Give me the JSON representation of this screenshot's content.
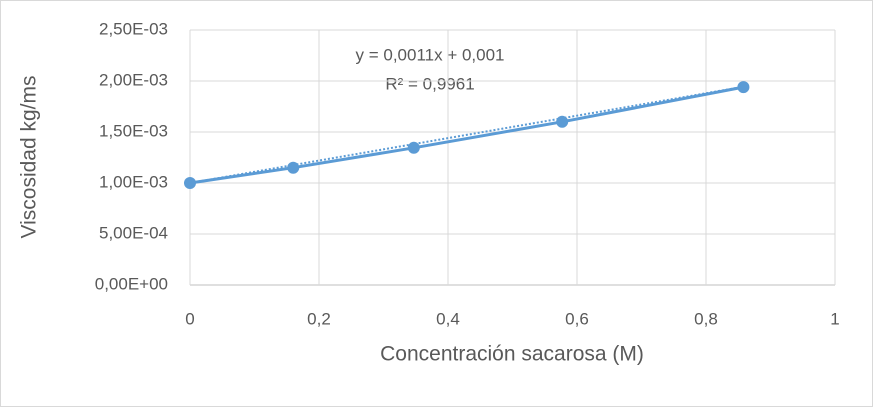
{
  "chart_data": {
    "type": "scatter-line",
    "x_label": "Concentración sacarosa (M)",
    "y_label": "Viscosidad kg/ms",
    "series": [
      {
        "name": "Viscosidad",
        "color": "#5b9bd5",
        "x": [
          0,
          0.16,
          0.347,
          0.577,
          0.858
        ],
        "values": [
          0.001,
          0.00115,
          0.001345,
          0.0016,
          0.00194
        ]
      }
    ],
    "trendline": {
      "label": "y = 0,0011x + 0,001",
      "slope": 0.0011,
      "intercept": 0.001,
      "r2_label": "R² = 0,9961",
      "r2": 0.9961
    },
    "xlim": [
      0,
      1
    ],
    "xticks": [
      0,
      {
        "value": 0.2,
        "label": "0,2"
      },
      {
        "value": 0.4,
        "label": "0,4"
      },
      {
        "value": 0.6,
        "label": "0,6"
      },
      {
        "value": 0.8,
        "label": "0,8"
      },
      1
    ],
    "ylim": [
      0,
      0.0025
    ],
    "yticks": [
      {
        "value": 0,
        "label": "0,00E+00"
      },
      {
        "value": 0.0005,
        "label": "5,00E-04"
      },
      {
        "value": 0.001,
        "label": "1,00E-03"
      },
      {
        "value": 0.0015,
        "label": "1,50E-03"
      },
      {
        "value": 0.002,
        "label": "2,00E-03"
      },
      {
        "value": 0.0025,
        "label": "2,50E-03"
      }
    ],
    "grid": true
  }
}
